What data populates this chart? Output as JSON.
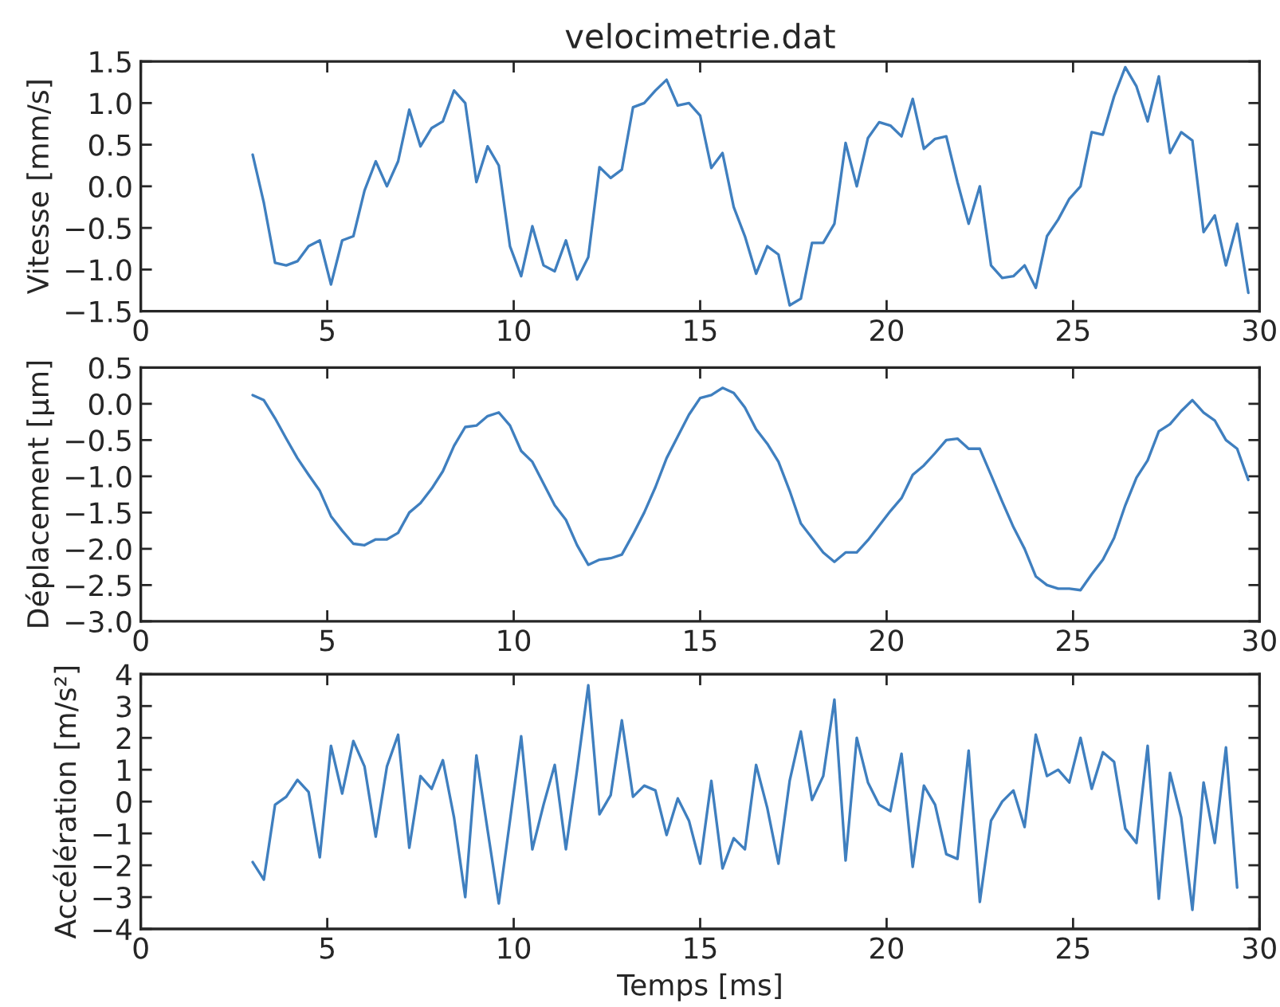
{
  "chart_data": [
    {
      "type": "line",
      "title": "velocimetrie.dat",
      "ylabel": "Vitesse [mm/s]",
      "color": "#3f7fbf",
      "grid": false,
      "x": [
        3.0,
        3.3,
        3.6,
        3.9,
        4.2,
        4.5,
        4.8,
        5.1,
        5.4,
        5.7,
        6.0,
        6.3,
        6.6,
        6.9,
        7.2,
        7.5,
        7.8,
        8.1,
        8.4,
        8.7,
        9.0,
        9.3,
        9.6,
        9.9,
        10.2,
        10.5,
        10.8,
        11.1,
        11.4,
        11.7,
        12.0,
        12.3,
        12.6,
        12.9,
        13.2,
        13.5,
        13.8,
        14.1,
        14.4,
        14.7,
        15.0,
        15.3,
        15.6,
        15.9,
        16.2,
        16.5,
        16.8,
        17.1,
        17.4,
        17.7,
        18.0,
        18.3,
        18.6,
        18.9,
        19.2,
        19.5,
        19.8,
        20.1,
        20.4,
        20.7,
        21.0,
        21.3,
        21.6,
        21.9,
        22.2,
        22.5,
        22.8,
        23.1,
        23.4,
        23.7,
        24.0,
        24.3,
        24.6,
        24.9,
        25.2,
        25.5,
        25.8,
        26.1,
        26.4,
        26.7,
        27.0,
        27.3,
        27.6,
        27.9,
        28.2,
        28.5,
        28.8,
        29.1,
        29.4,
        29.7
      ],
      "values": [
        0.38,
        -0.2,
        -0.92,
        -0.95,
        -0.9,
        -0.72,
        -0.65,
        -1.18,
        -0.65,
        -0.6,
        -0.05,
        0.3,
        0.0,
        0.3,
        0.92,
        0.48,
        0.7,
        0.78,
        1.15,
        1.0,
        0.05,
        0.48,
        0.25,
        -0.72,
        -1.08,
        -0.48,
        -0.95,
        -1.02,
        -0.65,
        -1.12,
        -0.85,
        0.23,
        0.1,
        0.2,
        0.95,
        1.0,
        1.15,
        1.28,
        0.97,
        1.0,
        0.85,
        0.22,
        0.4,
        -0.25,
        -0.6,
        -1.05,
        -0.72,
        -0.82,
        -1.43,
        -1.35,
        -0.68,
        -0.68,
        -0.45,
        0.52,
        0.0,
        0.58,
        0.77,
        0.73,
        0.6,
        1.05,
        0.45,
        0.57,
        0.6,
        0.05,
        -0.45,
        0.0,
        -0.95,
        -1.1,
        -1.08,
        -0.95,
        -1.22,
        -0.6,
        -0.4,
        -0.15,
        0.0,
        0.65,
        0.62,
        1.08,
        1.43,
        1.2,
        0.78,
        1.32,
        0.4,
        0.65,
        0.55,
        -0.55,
        -0.35,
        -0.95,
        -0.45,
        -1.28
      ],
      "xlim": [
        0,
        30
      ],
      "xticks": [
        0,
        5,
        10,
        15,
        20,
        25,
        30
      ],
      "ylim": [
        -1.5,
        1.5
      ],
      "yticks": [
        {
          "value": -1.5,
          "label": "−1.5"
        },
        {
          "value": -1.0,
          "label": "−1.0"
        },
        {
          "value": -0.5,
          "label": "−0.5"
        },
        {
          "value": 0,
          "label": "0.0"
        },
        {
          "value": 0.5,
          "label": "0.5"
        },
        {
          "value": 1.0,
          "label": "1.0"
        },
        {
          "value": 1.5,
          "label": "1.5"
        }
      ]
    },
    {
      "type": "line",
      "ylabel": "Déplacement [µm]",
      "color": "#3f7fbf",
      "grid": false,
      "x": [
        3.0,
        3.3,
        3.6,
        3.9,
        4.2,
        4.5,
        4.8,
        5.1,
        5.4,
        5.7,
        6.0,
        6.3,
        6.6,
        6.9,
        7.2,
        7.5,
        7.8,
        8.1,
        8.4,
        8.7,
        9.0,
        9.3,
        9.6,
        9.9,
        10.2,
        10.5,
        10.8,
        11.1,
        11.4,
        11.7,
        12.0,
        12.3,
        12.6,
        12.9,
        13.2,
        13.5,
        13.8,
        14.1,
        14.4,
        14.7,
        15.0,
        15.3,
        15.6,
        15.9,
        16.2,
        16.5,
        16.8,
        17.1,
        17.4,
        17.7,
        18.0,
        18.3,
        18.6,
        18.9,
        19.2,
        19.5,
        19.8,
        20.1,
        20.4,
        20.7,
        21.0,
        21.3,
        21.6,
        21.9,
        22.2,
        22.5,
        22.8,
        23.1,
        23.4,
        23.7,
        24.0,
        24.3,
        24.6,
        24.9,
        25.2,
        25.5,
        25.8,
        26.1,
        26.4,
        26.7,
        27.0,
        27.3,
        27.6,
        27.9,
        28.2,
        28.5,
        28.8,
        29.1,
        29.4,
        29.7
      ],
      "values": [
        0.12,
        0.05,
        -0.2,
        -0.48,
        -0.75,
        -0.98,
        -1.2,
        -1.55,
        -1.75,
        -1.93,
        -1.95,
        -1.87,
        -1.87,
        -1.78,
        -1.5,
        -1.37,
        -1.17,
        -0.93,
        -0.58,
        -0.32,
        -0.3,
        -0.17,
        -0.12,
        -0.3,
        -0.65,
        -0.8,
        -1.1,
        -1.4,
        -1.6,
        -1.95,
        -2.22,
        -2.15,
        -2.13,
        -2.08,
        -1.8,
        -1.5,
        -1.15,
        -0.75,
        -0.45,
        -0.15,
        0.08,
        0.12,
        0.22,
        0.15,
        -0.05,
        -0.35,
        -0.55,
        -0.8,
        -1.2,
        -1.65,
        -1.85,
        -2.05,
        -2.18,
        -2.05,
        -2.05,
        -1.88,
        -1.68,
        -1.48,
        -1.3,
        -0.98,
        -0.85,
        -0.68,
        -0.5,
        -0.48,
        -0.62,
        -0.62,
        -0.98,
        -1.35,
        -1.7,
        -2.0,
        -2.38,
        -2.5,
        -2.55,
        -2.55,
        -2.57,
        -2.35,
        -2.15,
        -1.85,
        -1.4,
        -1.02,
        -0.78,
        -0.38,
        -0.28,
        -0.1,
        0.05,
        -0.12,
        -0.23,
        -0.5,
        -0.62,
        -1.05
      ],
      "xlim": [
        0,
        30
      ],
      "xticks": [
        0,
        5,
        10,
        15,
        20,
        25,
        30
      ],
      "ylim": [
        -3.0,
        0.5
      ],
      "yticks": [
        {
          "value": -3.0,
          "label": "−3.0"
        },
        {
          "value": -2.5,
          "label": "−2.5"
        },
        {
          "value": -2.0,
          "label": "−2.0"
        },
        {
          "value": -1.5,
          "label": "−1.5"
        },
        {
          "value": -1.0,
          "label": "−1.0"
        },
        {
          "value": -0.5,
          "label": "−0.5"
        },
        {
          "value": 0,
          "label": "0.0"
        },
        {
          "value": 0.5,
          "label": "0.5"
        }
      ]
    },
    {
      "type": "line",
      "ylabel": "Accélération [m/s²]",
      "xlabel": "Temps [ms]",
      "color": "#3f7fbf",
      "grid": false,
      "x": [
        3.0,
        3.3,
        3.6,
        3.9,
        4.2,
        4.5,
        4.8,
        5.1,
        5.4,
        5.7,
        6.0,
        6.3,
        6.6,
        6.9,
        7.2,
        7.5,
        7.8,
        8.1,
        8.4,
        8.7,
        9.0,
        9.3,
        9.6,
        9.9,
        10.2,
        10.5,
        10.8,
        11.1,
        11.4,
        11.7,
        12.0,
        12.3,
        12.6,
        12.9,
        13.2,
        13.5,
        13.8,
        14.1,
        14.4,
        14.7,
        15.0,
        15.3,
        15.6,
        15.9,
        16.2,
        16.5,
        16.8,
        17.1,
        17.4,
        17.7,
        18.0,
        18.3,
        18.6,
        18.9,
        19.2,
        19.5,
        19.8,
        20.1,
        20.4,
        20.7,
        21.0,
        21.3,
        21.6,
        21.9,
        22.2,
        22.5,
        22.8,
        23.1,
        23.4,
        23.7,
        24.0,
        24.3,
        24.6,
        24.9,
        25.2,
        25.5,
        25.8,
        26.1,
        26.4,
        26.7,
        27.0,
        27.3,
        27.6,
        27.9,
        28.2,
        28.5,
        28.8,
        29.1,
        29.4
      ],
      "values": [
        -1.9,
        -2.45,
        -0.1,
        0.15,
        0.68,
        0.3,
        -1.75,
        1.75,
        0.25,
        1.9,
        1.1,
        -1.1,
        1.1,
        2.1,
        -1.45,
        0.8,
        0.4,
        1.3,
        -0.5,
        -3.0,
        1.45,
        -0.9,
        -3.2,
        -0.6,
        2.05,
        -1.5,
        -0.1,
        1.15,
        -1.5,
        1.0,
        3.65,
        -0.4,
        0.2,
        2.55,
        0.15,
        0.5,
        0.35,
        -1.05,
        0.1,
        -0.6,
        -1.95,
        0.65,
        -2.1,
        -1.15,
        -1.5,
        1.15,
        -0.2,
        -1.95,
        0.65,
        2.2,
        0.05,
        0.8,
        3.2,
        -1.85,
        2.0,
        0.6,
        -0.1,
        -0.3,
        1.5,
        -2.05,
        0.5,
        -0.1,
        -1.65,
        -1.8,
        1.6,
        -3.15,
        -0.6,
        0.0,
        0.35,
        -0.8,
        2.1,
        0.8,
        1.0,
        0.6,
        2.0,
        0.4,
        1.55,
        1.25,
        -0.85,
        -1.3,
        1.75,
        -3.05,
        0.9,
        -0.5,
        -3.4,
        0.6,
        -1.3,
        1.7,
        -2.7
      ],
      "xlim": [
        0,
        30
      ],
      "xticks": [
        0,
        5,
        10,
        15,
        20,
        25,
        30
      ],
      "ylim": [
        -4,
        4
      ],
      "yticks": [
        {
          "value": -4,
          "label": "−4"
        },
        {
          "value": -3,
          "label": "−3"
        },
        {
          "value": -2,
          "label": "−2"
        },
        {
          "value": -1,
          "label": "−1"
        },
        0,
        1,
        2,
        3,
        4
      ]
    }
  ]
}
